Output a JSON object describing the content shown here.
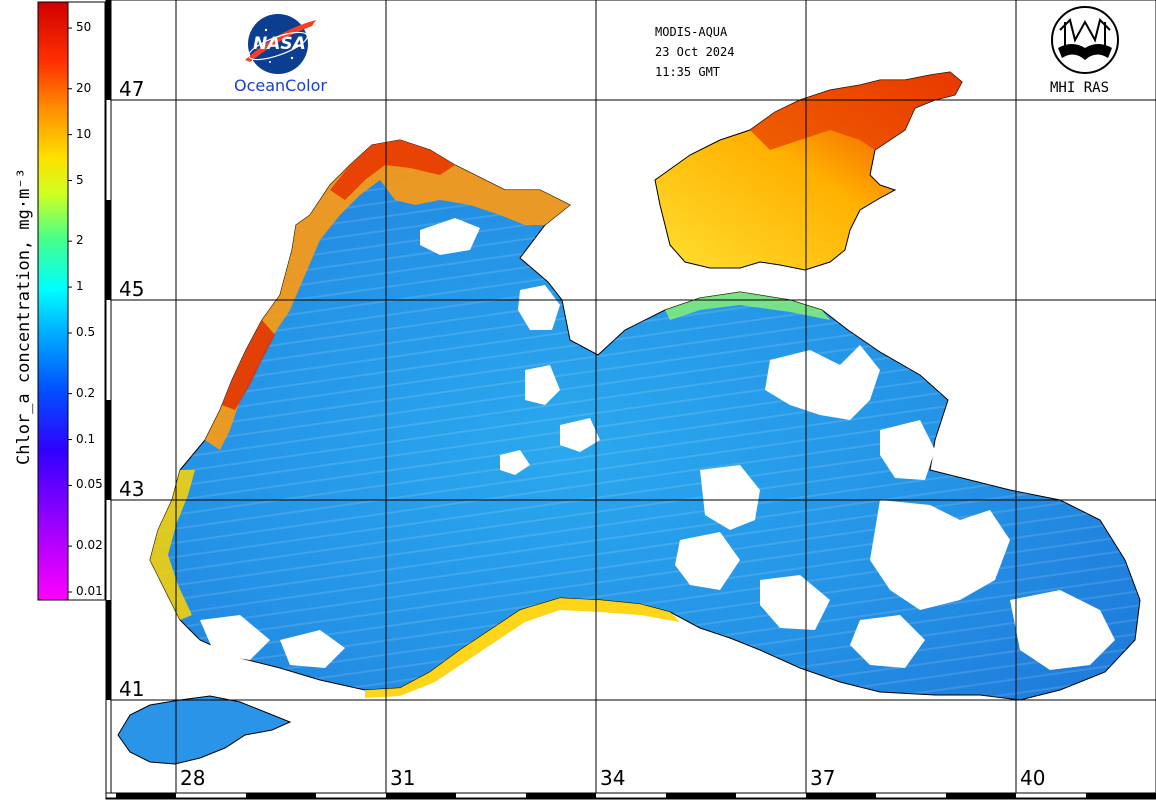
{
  "colorbar": {
    "title": "Chlor_a concentration, mg·m⁻³",
    "ticks": [
      {
        "label": "50",
        "value": 50
      },
      {
        "label": "20",
        "value": 20
      },
      {
        "label": "10",
        "value": 10
      },
      {
        "label": "5",
        "value": 5
      },
      {
        "label": "2",
        "value": 2
      },
      {
        "label": "1",
        "value": 1
      },
      {
        "label": "0.5",
        "value": 0.5
      },
      {
        "label": "0.2",
        "value": 0.2
      },
      {
        "label": "0.1",
        "value": 0.1
      },
      {
        "label": "0.05",
        "value": 0.05
      },
      {
        "label": "0.02",
        "value": 0.02
      },
      {
        "label": "0.01",
        "value": 0.01
      }
    ],
    "scale": "log",
    "range": [
      0.01,
      60
    ],
    "colors": [
      "#ff00ff",
      "#8000ff",
      "#0000ff",
      "#0080ff",
      "#00ffff",
      "#00ff80",
      "#ffff00",
      "#ff8000",
      "#ff0000",
      "#cc0000"
    ]
  },
  "header": {
    "sensor": "MODIS-AQUA",
    "date": "23 Oct 2024",
    "time": "11:35 GMT"
  },
  "logos": {
    "nasa_wordmark": "NASA",
    "nasa_caption": "OceanColor",
    "mhi_caption": "MHI RAS"
  },
  "grid": {
    "latitudes": [
      "47",
      "45",
      "43",
      "41"
    ],
    "longitudes": [
      "28",
      "31",
      "34",
      "37",
      "40"
    ]
  },
  "colors": {
    "background": "#ffffff",
    "land": "#ffffff",
    "grid": "#000000",
    "low_chl": "#1e7fe0",
    "mid_chl": "#29c4e8",
    "high_chl": "#ffd400",
    "very_high_chl": "#ff4000"
  }
}
